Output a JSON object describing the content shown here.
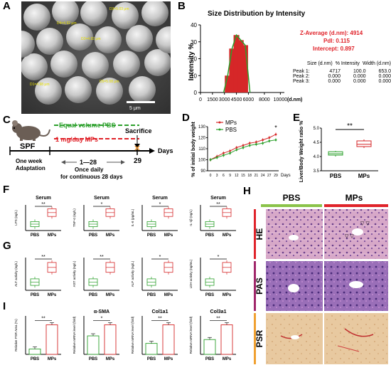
{
  "panels": {
    "A": "A",
    "B": "B",
    "C": "C",
    "D": "D",
    "E": "E",
    "F": "F",
    "G": "G",
    "H": "H",
    "I": "I"
  },
  "sem": {
    "scalebar": "5 μm",
    "measurements": [
      "D4=4.92 μm",
      "D3=5.03 μm",
      "D2=4.92 μm",
      "D1=4.98 μm",
      "D5=5.08 μm"
    ]
  },
  "dls": {
    "title": "Size Distribution by Intensity",
    "z_average": "Z-Average (d.nm): 4914",
    "pdi": "PdI: 0.115",
    "intercept": "Intercept: 0.897",
    "table_header": [
      "Size (d.nm)",
      "% Intensity",
      "Width (d.nm)"
    ],
    "table_rows": [
      [
        "Peak 1:",
        "4717",
        "100.0",
        "653.0"
      ],
      [
        "Peak 2:",
        "0.000",
        "0.000",
        "0.000"
      ],
      [
        "Peak 3:",
        "0.000",
        "0.000",
        "0.000"
      ]
    ]
  },
  "design": {
    "pbs": "Equal volume PBS",
    "mps": "1 mg/day MPs",
    "spf": "SPF",
    "week": "One week",
    "adapt": "Adaptation",
    "range": "1—28",
    "daily1": "Once daily",
    "daily2": "for continuous 28 days",
    "sacrifice": "Sacrifice",
    "day29": "29",
    "days": "Days"
  },
  "H": {
    "pbs": "PBS",
    "mps": "MPs",
    "rows": [
      "HE",
      "PAS",
      "PSR"
    ]
  },
  "chart_data": [
    {
      "panel": "B",
      "type": "bar",
      "title": "Size Distribution by Intensity",
      "xlabel": "(d.nm)",
      "ylabel": "Intensity %",
      "x": [
        3400,
        3950,
        4500,
        5050,
        5600
      ],
      "values": [
        10,
        26,
        34,
        31,
        28
      ],
      "xticks": [
        "0",
        "1500",
        "3000",
        "4500",
        "6000",
        "8000",
        "10000"
      ],
      "yticks": [
        "0",
        "10",
        "20",
        "30",
        "40"
      ],
      "ylim": [
        0,
        40
      ]
    },
    {
      "panel": "D",
      "type": "line",
      "ylabel": "% of initial body weight",
      "xlabel": "Days",
      "xticks": [
        "0",
        "3",
        "6",
        "9",
        "12",
        "15",
        "18",
        "21",
        "24",
        "27",
        "29"
      ],
      "yticks": [
        "90",
        "100",
        "110",
        "120",
        "130"
      ],
      "ylim": [
        90,
        130
      ],
      "series": [
        {
          "name": "MPs",
          "values": [
            100,
            103,
            106,
            108,
            111,
            113,
            115,
            116,
            118,
            120,
            123
          ]
        },
        {
          "name": "PBS",
          "values": [
            100,
            102,
            104,
            106,
            109,
            111,
            113,
            114,
            115,
            117,
            118
          ]
        }
      ],
      "sig": "*"
    },
    {
      "panel": "E",
      "type": "box",
      "ylabel": "Liver/Body Weight ratio %",
      "categories": [
        "PBS",
        "MPs"
      ],
      "yticks": [
        "3.5",
        "4.0",
        "4.5",
        "5.0"
      ],
      "ylim": [
        3.5,
        5.0
      ],
      "boxes": [
        {
          "min": 4.0,
          "q1": 4.05,
          "med": 4.1,
          "q3": 4.17,
          "max": 4.2
        },
        {
          "min": 4.3,
          "q1": 4.35,
          "med": 4.43,
          "q3": 4.55,
          "max": 4.6
        }
      ],
      "sig": "**"
    },
    {
      "panel": "F",
      "type": "box",
      "plots": [
        {
          "title": "Serum",
          "ylabel": "LPS (ng/L)",
          "sig": "**"
        },
        {
          "title": "Serum",
          "ylabel": "TNF-α (ng/L)",
          "sig": "*"
        },
        {
          "title": "Serum",
          "ylabel": "IL-6 (pg/mL)",
          "sig": "*"
        },
        {
          "title": "Serum",
          "ylabel": "IL-1β (ng/L)",
          "sig": "**"
        }
      ],
      "categories": [
        "PBS",
        "MPs"
      ]
    },
    {
      "panel": "G",
      "type": "box",
      "plots": [
        {
          "ylabel": "ALT activity (ng/L)",
          "sig": "**"
        },
        {
          "ylabel": "AST activity (ng/L)",
          "sig": "**"
        },
        {
          "ylabel": "ALP activity (ng/L)",
          "sig": "*"
        },
        {
          "ylabel": "LDH activity (ng/mL)",
          "sig": "*"
        }
      ],
      "categories": [
        "PBS",
        "MPs"
      ]
    },
    {
      "panel": "I",
      "type": "bar",
      "plots": [
        {
          "title": "",
          "ylabel": "Relative PSR Area (%)",
          "values": [
            1.0,
            5.5
          ],
          "sig": "**"
        },
        {
          "title": "α-SMA",
          "ylabel": "Relative mRNA level (fold)",
          "values": [
            1.0,
            1.6
          ],
          "sig": "*"
        },
        {
          "title": "Col1a1",
          "ylabel": "Relative mRNA level (fold)",
          "values": [
            1.0,
            2.7
          ],
          "sig": "**"
        },
        {
          "title": "Col3a1",
          "ylabel": "Relative mRNA level (fold)",
          "values": [
            1.0,
            2.0
          ],
          "sig": "**"
        }
      ],
      "categories": [
        "PBS",
        "MPs"
      ]
    }
  ]
}
